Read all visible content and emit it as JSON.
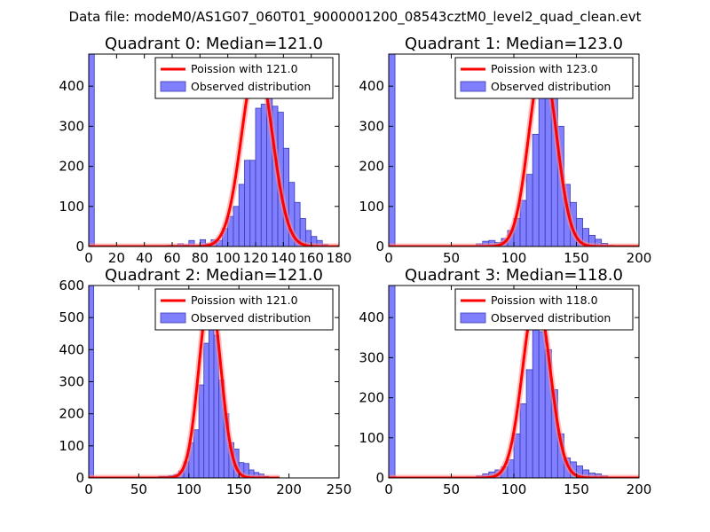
{
  "figure": {
    "suptitle": "Data file: modeM0/AS1G07_060T01_9000001200_08543cztM0_level2_quad_clean.evt",
    "colors": {
      "bar_fill": "#7f7fff",
      "bar_edge": "#3b3bb5",
      "curve": "#ff0000",
      "curve_glow": "#ff9090"
    }
  },
  "chart_data": [
    {
      "type": "bar",
      "title": "Quadrant 0: Median=121.0",
      "xlim": [
        0,
        180
      ],
      "ylim": [
        0,
        480
      ],
      "xticks": [
        0,
        20,
        40,
        60,
        80,
        100,
        120,
        140,
        160,
        180
      ],
      "yticks": [
        0,
        100,
        200,
        300,
        400
      ],
      "zero_bin": 480,
      "bin_width": 4,
      "bins": [
        [
          56,
          3
        ],
        [
          60,
          3
        ],
        [
          64,
          7
        ],
        [
          68,
          4
        ],
        [
          72,
          15
        ],
        [
          76,
          3
        ],
        [
          80,
          17
        ],
        [
          84,
          7
        ],
        [
          88,
          17
        ],
        [
          92,
          15
        ],
        [
          96,
          45
        ],
        [
          100,
          75
        ],
        [
          104,
          100
        ],
        [
          108,
          155
        ],
        [
          112,
          215
        ],
        [
          116,
          215
        ],
        [
          120,
          345
        ],
        [
          124,
          355
        ],
        [
          128,
          370
        ],
        [
          132,
          350
        ],
        [
          136,
          335
        ],
        [
          140,
          245
        ],
        [
          144,
          160
        ],
        [
          148,
          110
        ],
        [
          152,
          70
        ],
        [
          156,
          40
        ],
        [
          160,
          25
        ],
        [
          164,
          15
        ],
        [
          168,
          5
        ]
      ],
      "curve": {
        "label": "Poission with 121.0",
        "mean": 121.0,
        "peak": 463
      },
      "legend": {
        "curve": "Poission with 121.0",
        "bars": "Observed distribution"
      }
    },
    {
      "type": "bar",
      "title": "Quadrant 1: Median=123.0",
      "xlim": [
        0,
        200
      ],
      "ylim": [
        0,
        480
      ],
      "xticks": [
        0,
        50,
        100,
        150,
        200
      ],
      "yticks": [
        0,
        100,
        200,
        300,
        400
      ],
      "zero_bin": 480,
      "bin_width": 5,
      "bins": [
        [
          70,
          7
        ],
        [
          75,
          13
        ],
        [
          80,
          15
        ],
        [
          85,
          10
        ],
        [
          90,
          20
        ],
        [
          95,
          40
        ],
        [
          100,
          70
        ],
        [
          105,
          115
        ],
        [
          110,
          180
        ],
        [
          115,
          280
        ],
        [
          120,
          375
        ],
        [
          125,
          400
        ],
        [
          130,
          385
        ],
        [
          135,
          300
        ],
        [
          140,
          155
        ],
        [
          145,
          110
        ],
        [
          150,
          70
        ],
        [
          155,
          45
        ],
        [
          160,
          28
        ],
        [
          165,
          18
        ],
        [
          170,
          8
        ],
        [
          175,
          3
        ]
      ],
      "curve": {
        "label": "Poission with 123.0",
        "mean": 123.0,
        "peak": 460
      },
      "legend": {
        "curve": "Poission with 123.0",
        "bars": "Observed distribution"
      }
    },
    {
      "type": "bar",
      "title": "Quadrant 2: Median=121.0",
      "xlim": [
        0,
        250
      ],
      "ylim": [
        0,
        600
      ],
      "xticks": [
        0,
        50,
        100,
        150,
        200,
        250
      ],
      "yticks": [
        0,
        100,
        200,
        300,
        400,
        500,
        600
      ],
      "zero_bin": 600,
      "bin_width": 5,
      "bins": [
        [
          70,
          5
        ],
        [
          75,
          5
        ],
        [
          80,
          7
        ],
        [
          85,
          10
        ],
        [
          90,
          22
        ],
        [
          95,
          50
        ],
        [
          100,
          110
        ],
        [
          105,
          150
        ],
        [
          110,
          290
        ],
        [
          115,
          420
        ],
        [
          120,
          540
        ],
        [
          125,
          445
        ],
        [
          130,
          305
        ],
        [
          135,
          200
        ],
        [
          140,
          110
        ],
        [
          145,
          90
        ],
        [
          150,
          48
        ],
        [
          155,
          45
        ],
        [
          160,
          25
        ],
        [
          165,
          17
        ],
        [
          170,
          12
        ],
        [
          175,
          5
        ],
        [
          180,
          3
        ]
      ],
      "curve": {
        "label": "Poission with 121.0",
        "mean": 121.0,
        "peak": 570
      },
      "legend": {
        "curve": "Poission with 121.0",
        "bars": "Observed distribution"
      }
    },
    {
      "type": "bar",
      "title": "Quadrant 3: Median=118.0",
      "xlim": [
        0,
        200
      ],
      "ylim": [
        0,
        480
      ],
      "xticks": [
        0,
        50,
        100,
        150,
        200
      ],
      "yticks": [
        0,
        100,
        200,
        300,
        400
      ],
      "zero_bin": 480,
      "bin_width": 5,
      "bins": [
        [
          70,
          5
        ],
        [
          75,
          10
        ],
        [
          80,
          15
        ],
        [
          85,
          20
        ],
        [
          90,
          28
        ],
        [
          95,
          45
        ],
        [
          100,
          110
        ],
        [
          105,
          185
        ],
        [
          110,
          270
        ],
        [
          115,
          420
        ],
        [
          120,
          365
        ],
        [
          125,
          320
        ],
        [
          130,
          220
        ],
        [
          135,
          110
        ],
        [
          140,
          50
        ],
        [
          145,
          40
        ],
        [
          150,
          30
        ],
        [
          155,
          20
        ],
        [
          160,
          12
        ],
        [
          165,
          10
        ],
        [
          170,
          5
        ]
      ],
      "curve": {
        "label": "Poission with 118.0",
        "mean": 118.0,
        "peak": 455
      },
      "legend": {
        "curve": "Poission with 118.0",
        "bars": "Observed distribution"
      }
    }
  ]
}
